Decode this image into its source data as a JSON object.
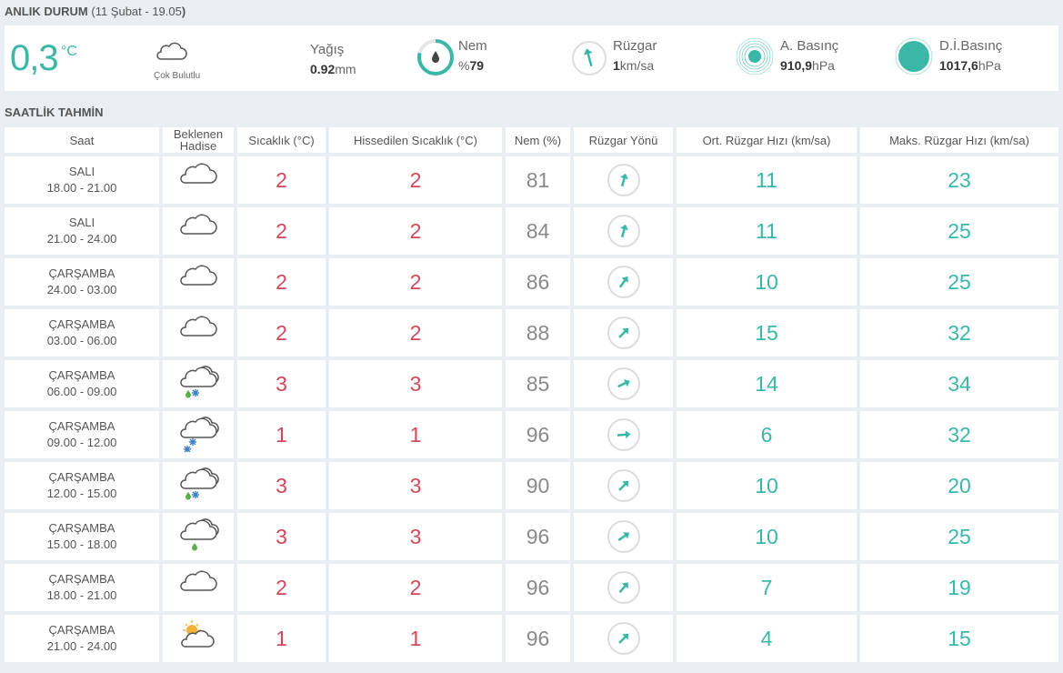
{
  "current": {
    "title": "ANLIK DURUM",
    "subtitle_open": "(",
    "date": "11 Şubat - 19.05",
    "subtitle_close": ")",
    "temperature": "0,3",
    "temperature_unit": "°C",
    "condition": "Çok Bulutlu",
    "condition_icon": "cloud-icon",
    "precip_label": "Yağış",
    "precip_value": "0.92",
    "precip_unit": "mm",
    "humidity_label": "Nem",
    "humidity_prefix": "%",
    "humidity_value": "79",
    "humidity_fraction": 0.79,
    "wind_label": "Rüzgar",
    "wind_value": "1",
    "wind_unit": "km/sa",
    "pressure_label": "A. Basınç",
    "pressure_value": "910,9",
    "pressure_unit": "hPa",
    "sea_pressure_label": "D.İ.Basınç",
    "sea_pressure_value": "1017,6",
    "sea_pressure_unit": "hPa",
    "accent_color": "#3bb7a8"
  },
  "hourly": {
    "title": "SAATLİK TAHMİN",
    "headers": {
      "time": "Saat",
      "event_line1": "Beklenen",
      "event_line2": "Hadise",
      "temp": "Sıcaklık (°C)",
      "feels": "Hissedilen Sıcaklık (°C)",
      "humidity": "Nem (%)",
      "wind_dir": "Rüzgar Yönü",
      "wind_avg": "Ort. Rüzgar Hızı (km/sa)",
      "wind_max": "Maks. Rüzgar Hızı (km/sa)"
    },
    "rows": [
      {
        "day": "SALI",
        "range": "18.00 - 21.00",
        "icon": "cloud-icon",
        "temp": "2",
        "feels": "2",
        "humidity": "81",
        "wind_dir_deg": 15,
        "wind_avg": "11",
        "wind_max": "23"
      },
      {
        "day": "SALI",
        "range": "21.00 - 24.00",
        "icon": "cloud-icon",
        "temp": "2",
        "feels": "2",
        "humidity": "84",
        "wind_dir_deg": 15,
        "wind_avg": "11",
        "wind_max": "25"
      },
      {
        "day": "ÇARŞAMBA",
        "range": "24.00 - 03.00",
        "icon": "cloud-icon",
        "temp": "2",
        "feels": "2",
        "humidity": "86",
        "wind_dir_deg": 35,
        "wind_avg": "10",
        "wind_max": "25"
      },
      {
        "day": "ÇARŞAMBA",
        "range": "03.00 - 06.00",
        "icon": "cloud-icon",
        "temp": "2",
        "feels": "2",
        "humidity": "88",
        "wind_dir_deg": 45,
        "wind_avg": "15",
        "wind_max": "32"
      },
      {
        "day": "ÇARŞAMBA",
        "range": "06.00 - 09.00",
        "icon": "cloud-rain-snow-icon",
        "temp": "3",
        "feels": "3",
        "humidity": "85",
        "wind_dir_deg": 65,
        "wind_avg": "14",
        "wind_max": "34"
      },
      {
        "day": "ÇARŞAMBA",
        "range": "09.00 - 12.00",
        "icon": "cloud-snow-icon",
        "temp": "1",
        "feels": "1",
        "humidity": "96",
        "wind_dir_deg": 85,
        "wind_avg": "6",
        "wind_max": "32"
      },
      {
        "day": "ÇARŞAMBA",
        "range": "12.00 - 15.00",
        "icon": "cloud-rain-snow-icon",
        "temp": "3",
        "feels": "3",
        "humidity": "90",
        "wind_dir_deg": 45,
        "wind_avg": "10",
        "wind_max": "20"
      },
      {
        "day": "ÇARŞAMBA",
        "range": "15.00 - 18.00",
        "icon": "cloud-rain-icon",
        "temp": "3",
        "feels": "3",
        "humidity": "96",
        "wind_dir_deg": 55,
        "wind_avg": "10",
        "wind_max": "25"
      },
      {
        "day": "ÇARŞAMBA",
        "range": "18.00 - 21.00",
        "icon": "cloud-icon",
        "temp": "2",
        "feels": "2",
        "humidity": "96",
        "wind_dir_deg": 40,
        "wind_avg": "7",
        "wind_max": "19"
      },
      {
        "day": "ÇARŞAMBA",
        "range": "21.00 - 24.00",
        "icon": "partly-sunny-icon",
        "temp": "1",
        "feels": "1",
        "humidity": "96",
        "wind_dir_deg": 45,
        "wind_avg": "4",
        "wind_max": "15"
      }
    ]
  }
}
